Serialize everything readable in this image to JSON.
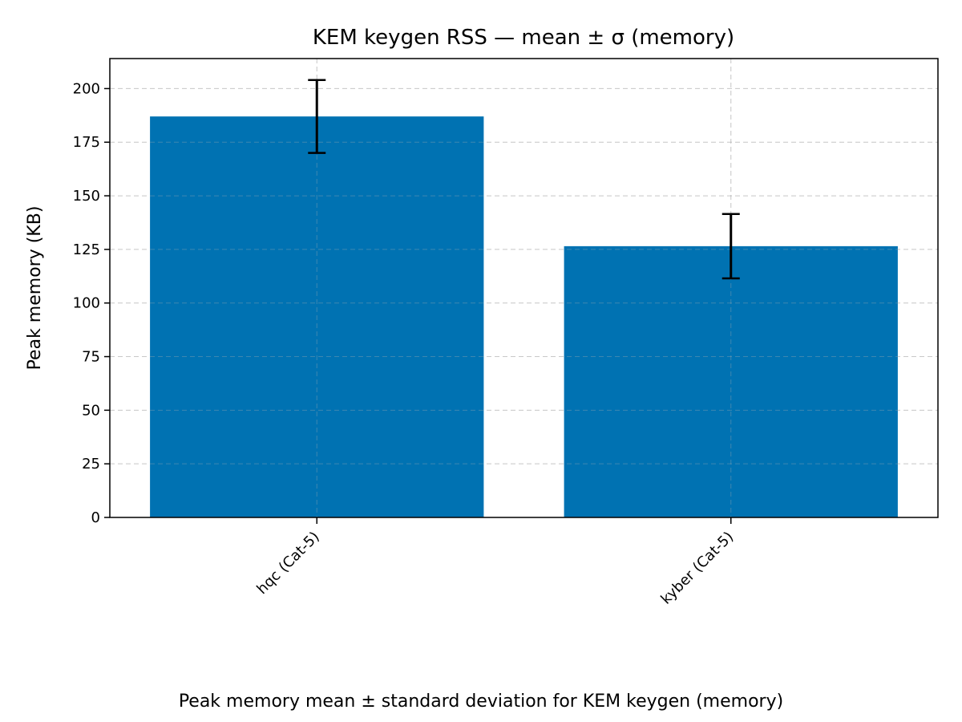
{
  "chart_data": {
    "type": "bar",
    "title": "KEM keygen RSS — mean ± σ (memory)",
    "xlabel": "",
    "ylabel": "Peak memory (KB)",
    "categories": [
      "hqc (Cat-5)",
      "kyber (Cat-5)"
    ],
    "values": [
      187,
      126.5
    ],
    "errors": [
      17,
      15
    ],
    "ylim": [
      0,
      214
    ],
    "yticks": [
      0,
      25,
      50,
      75,
      100,
      125,
      150,
      175,
      200
    ],
    "grid": true,
    "legend": "none",
    "bar_color": "#0072b2"
  },
  "caption": "Peak memory mean ± standard deviation for KEM keygen (memory)"
}
